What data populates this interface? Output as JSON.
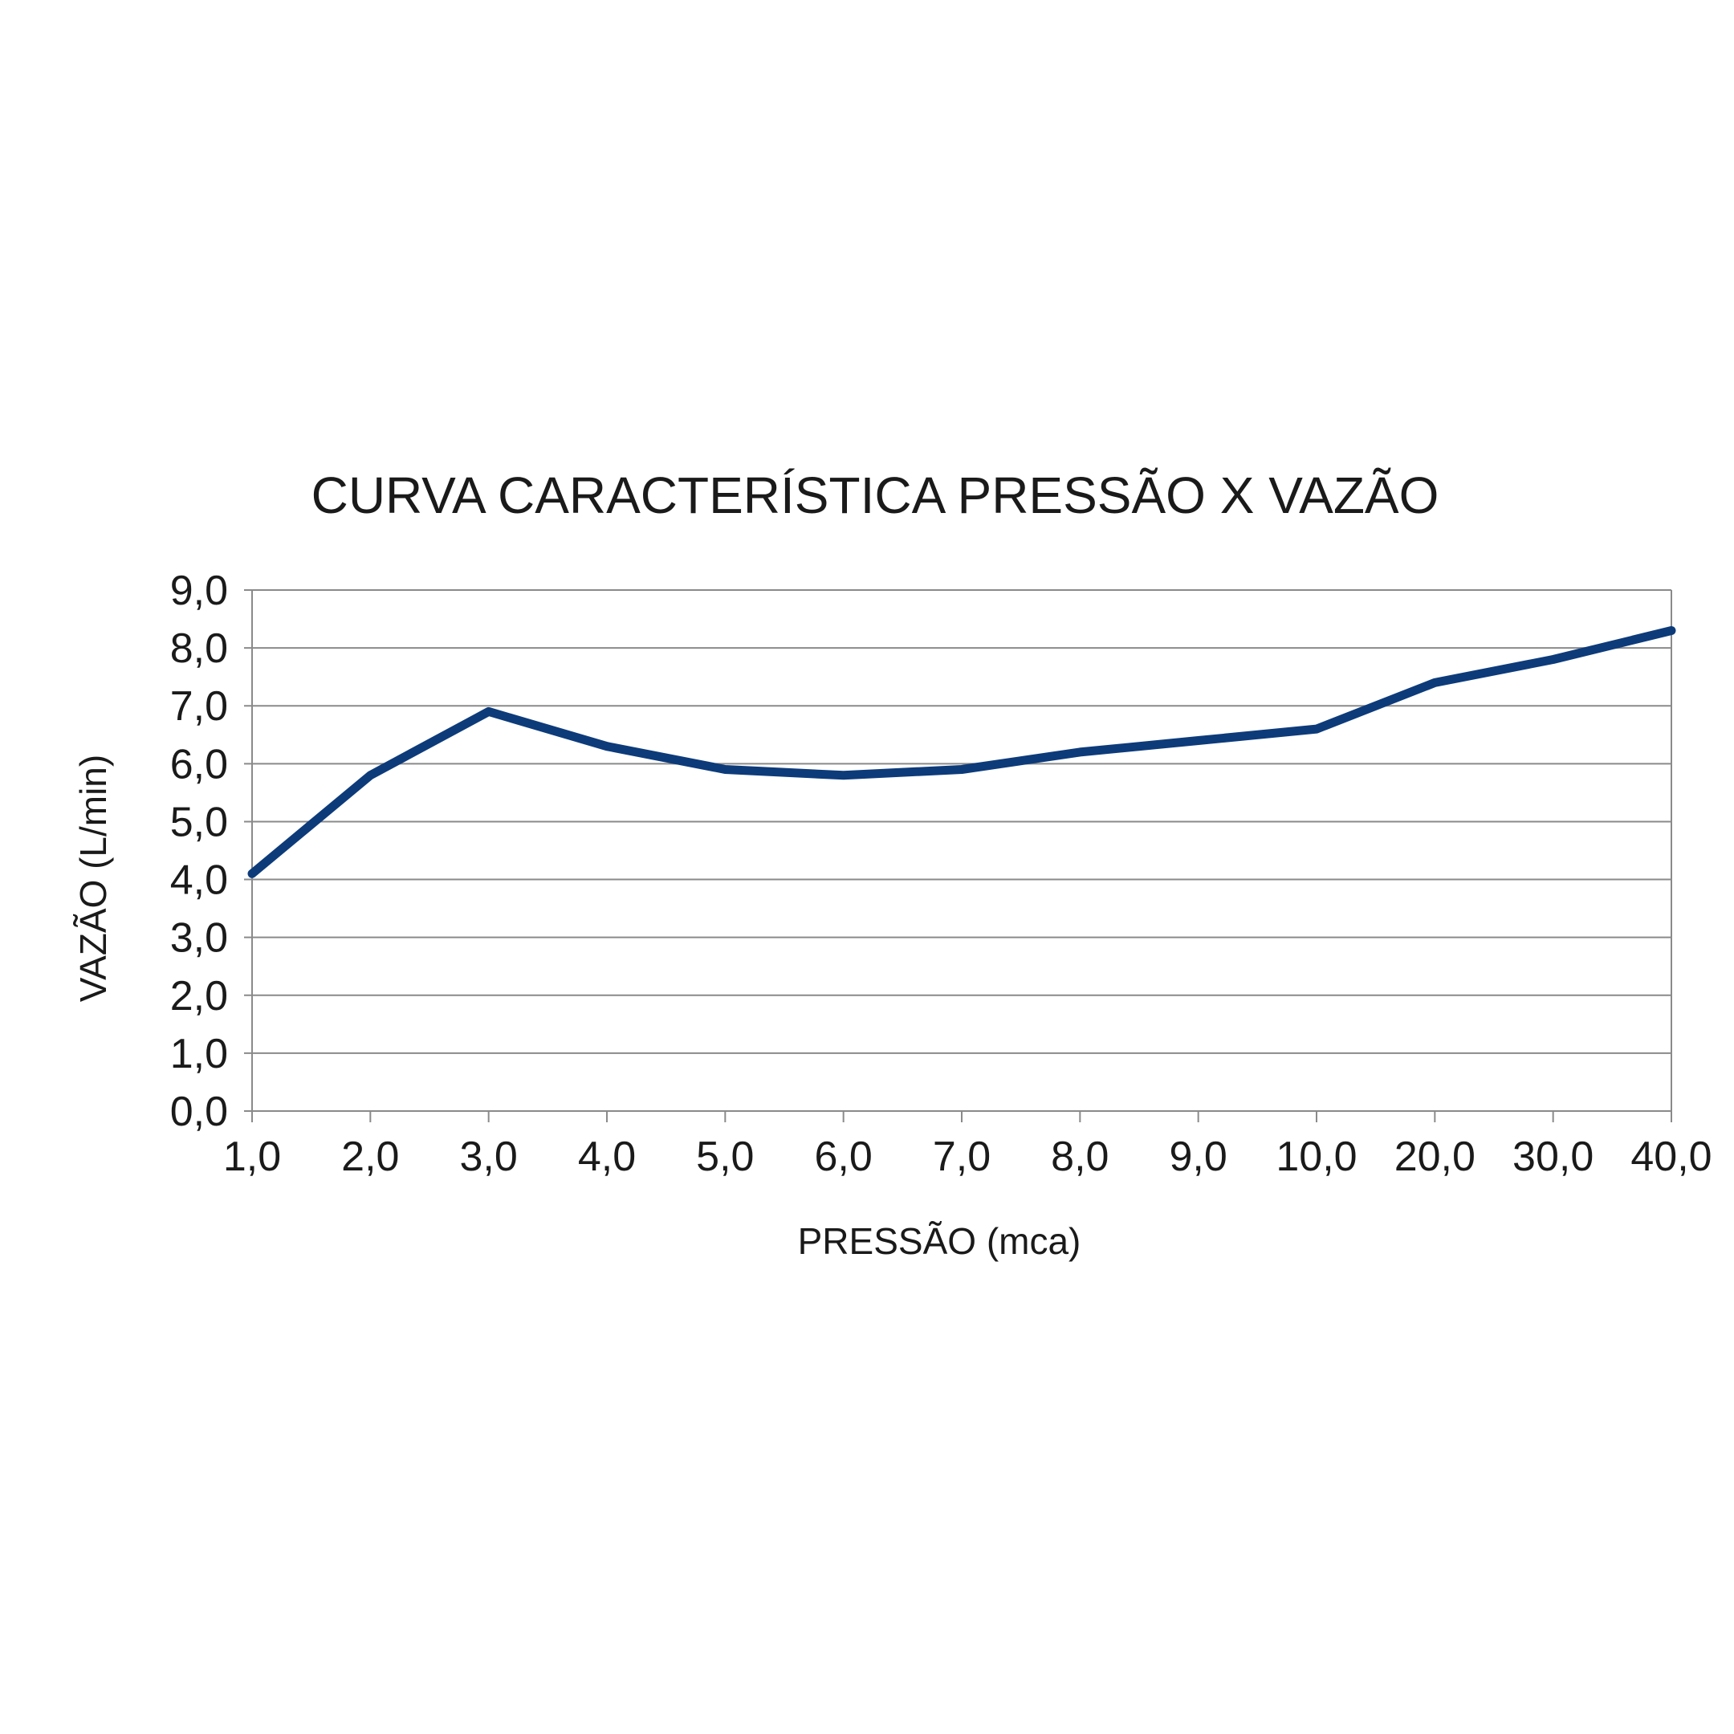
{
  "chart_data": {
    "type": "line",
    "title": "CURVA CARACTERÍSTICA PRESSÃO X VAZÃO",
    "xlabel": "PRESSÃO (mca)",
    "ylabel": "VAZÃO (L/min)",
    "categories": [
      "1,0",
      "2,0",
      "3,0",
      "4,0",
      "5,0",
      "6,0",
      "7,0",
      "8,0",
      "9,0",
      "10,0",
      "20,0",
      "30,0",
      "40,0"
    ],
    "yticks": [
      "0,0",
      "1,0",
      "2,0",
      "3,0",
      "4,0",
      "5,0",
      "6,0",
      "7,0",
      "8,0",
      "9,0"
    ],
    "ylim": [
      0,
      9
    ],
    "grid": true,
    "legend": "none",
    "series": [
      {
        "values": [
          4.1,
          5.8,
          6.9,
          6.3,
          5.9,
          5.8,
          5.9,
          6.2,
          6.4,
          6.6,
          7.4,
          7.8,
          8.3
        ]
      }
    ],
    "colors": {
      "line": "#0d3b7a",
      "grid": "#8a8a8a",
      "axis": "#8a8a8a",
      "text": "#1a1a1a"
    }
  }
}
